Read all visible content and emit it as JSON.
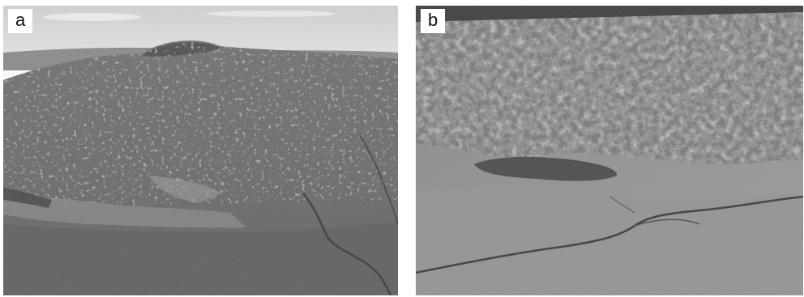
{
  "panels": [
    {
      "label": "a"
    },
    {
      "label": "b"
    }
  ],
  "colors": {
    "sky": "#dcdcdc",
    "terrain_dark": "#5a5a5a",
    "terrain_mid": "#7d7d7d",
    "rock_light": "#b5b5b5"
  }
}
